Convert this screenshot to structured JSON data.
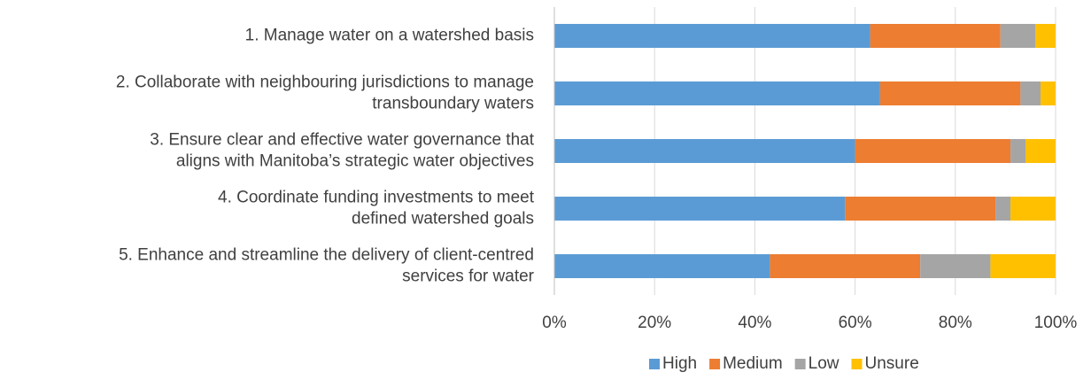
{
  "chart_data": {
    "type": "stacked_barh",
    "categories": [
      "1. Manage water on a watershed basis",
      "2. Collaborate with neighbouring jurisdictions to manage\ntransboundary waters",
      "3. Ensure clear and effective water governance that\naligns with Manitoba’s strategic water objectives",
      "4. Coordinate funding investments to meet\ndefined watershed goals",
      "5. Enhance and streamline the delivery of client-centred\nservices for water"
    ],
    "series": [
      {
        "name": "High",
        "color": "#5b9bd5",
        "values": [
          63,
          65,
          60,
          58,
          43
        ]
      },
      {
        "name": "Medium",
        "color": "#ed7d31",
        "values": [
          26,
          28,
          31,
          30,
          30
        ]
      },
      {
        "name": "Low",
        "color": "#a5a5a5",
        "values": [
          7,
          4,
          3,
          3,
          14
        ]
      },
      {
        "name": "Unsure",
        "color": "#ffc000",
        "values": [
          4,
          3,
          6,
          9,
          13
        ]
      }
    ],
    "xlim": [
      0,
      100
    ],
    "xticks": [
      {
        "value": 0,
        "label": "0%"
      },
      {
        "value": 20,
        "label": "20%"
      },
      {
        "value": 40,
        "label": "40%"
      },
      {
        "value": 60,
        "label": "60%"
      },
      {
        "value": 80,
        "label": "80%"
      },
      {
        "value": 100,
        "label": "100%"
      }
    ],
    "grid": true,
    "legend": "bottom"
  }
}
